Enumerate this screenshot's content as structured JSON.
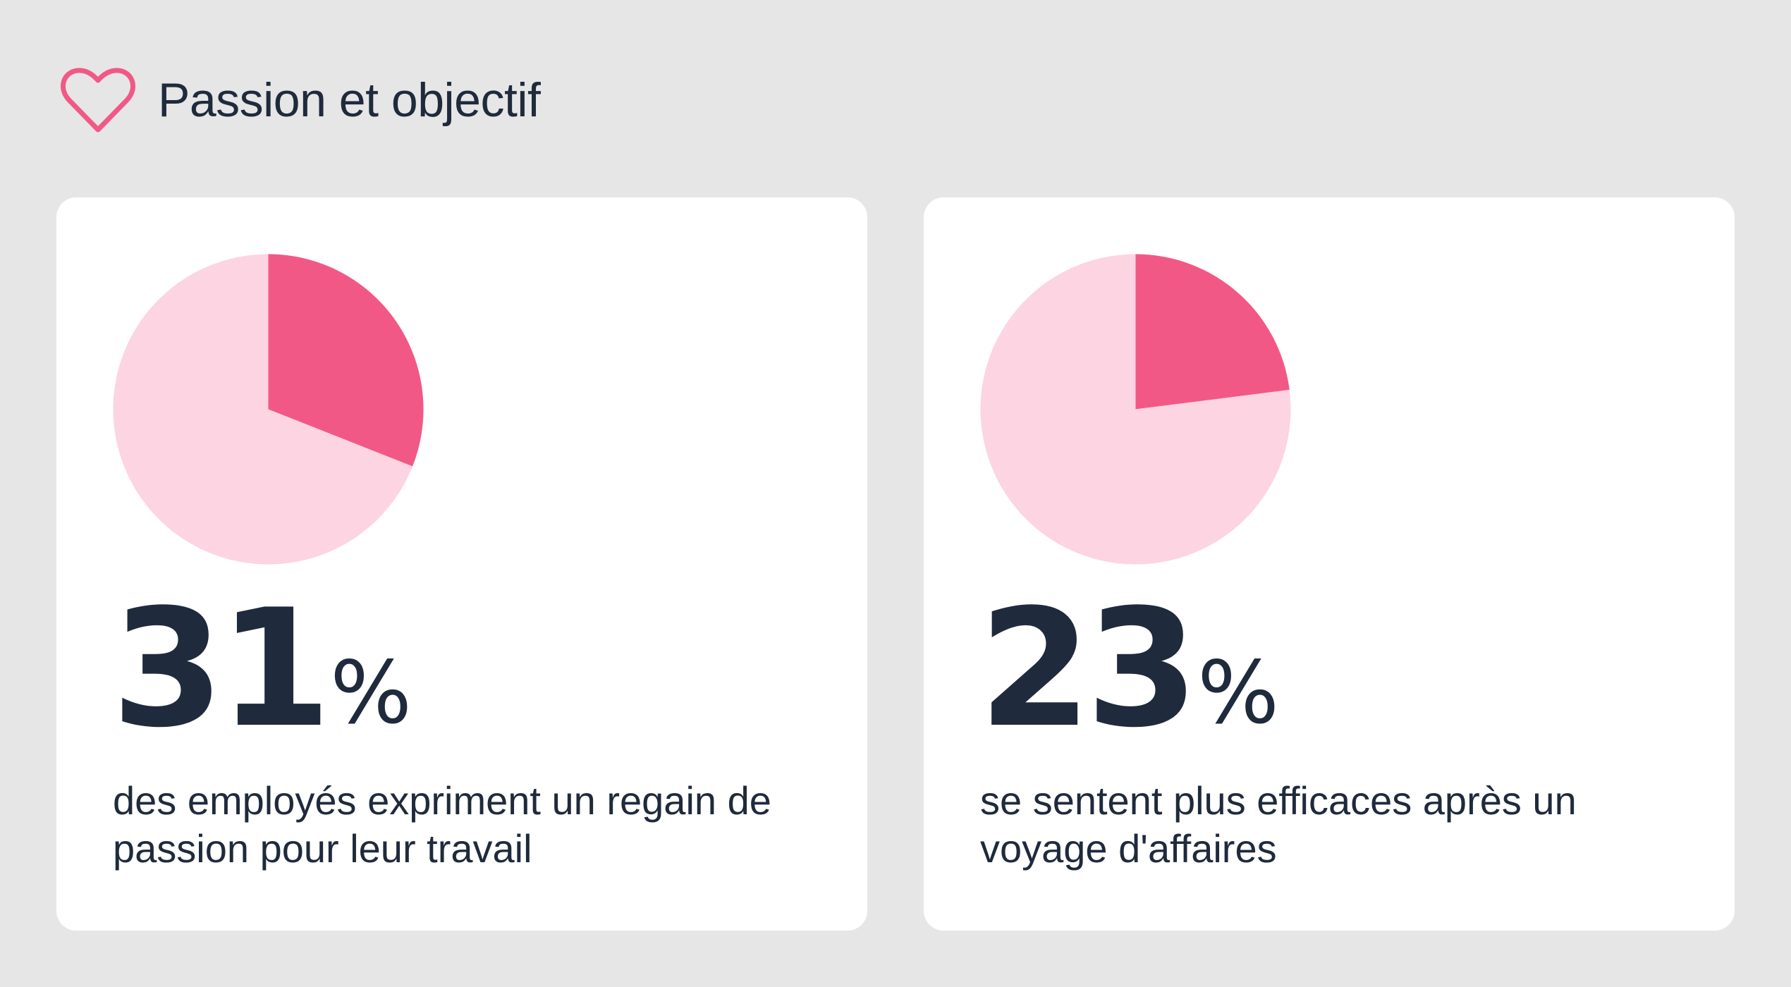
{
  "header": {
    "title": "Passion et objectif",
    "icon": "heart-icon"
  },
  "colors": {
    "background": "#e6e6e6",
    "card": "#ffffff",
    "highlight": "#f25886",
    "remainder": "#fdd4e1",
    "text": "#1f2a3c"
  },
  "chart_data": [
    {
      "type": "pie",
      "values": [
        31,
        69
      ],
      "value_label": "31",
      "unit": "%",
      "description": "des employés expriment un regain de passion pour leur travail"
    },
    {
      "type": "pie",
      "values": [
        23,
        77
      ],
      "value_label": "23",
      "unit": "%",
      "description": "se sentent plus efficaces après un voyage d'affaires"
    }
  ]
}
